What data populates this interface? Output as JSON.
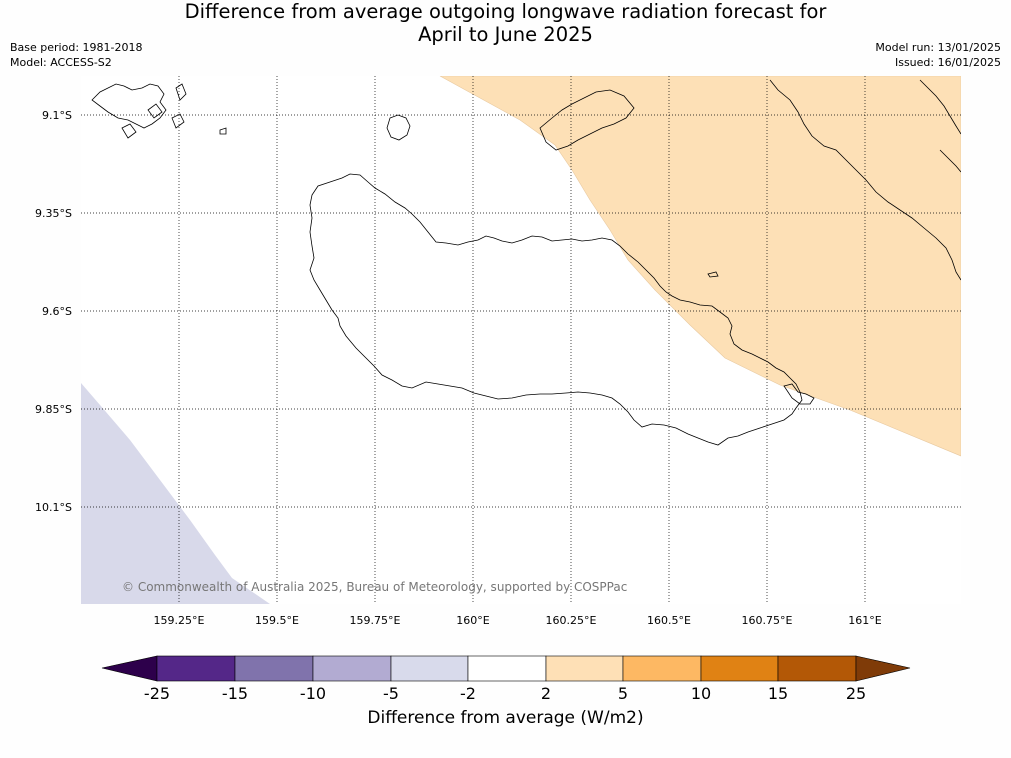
{
  "title": {
    "line1": "Difference from average outgoing longwave radiation forecast for",
    "line2": "April to June 2025"
  },
  "meta": {
    "base_period": "Base period: 1981-2018",
    "model": "Model: ACCESS-S2",
    "model_run": "Model run: 13/01/2025",
    "issued": "Issued: 16/01/2025"
  },
  "map": {
    "lat_labels": [
      "9.1°S",
      "9.35°S",
      "9.6°S",
      "9.85°S",
      "10.1°S"
    ],
    "lon_labels": [
      "159.25°E",
      "159.5°E",
      "159.75°E",
      "160°E",
      "160.25°E",
      "160.5°E",
      "160.75°E",
      "161°E"
    ],
    "copyright": "© Commonwealth of Australia 2025, Bureau of Meteorology, supported by COSPPac",
    "fill_colors": {
      "positive_2_5": "#fde0b6",
      "negative_5_2": "#d8d9ea"
    }
  },
  "colorbar": {
    "title": "Difference from average (W/m2)",
    "ticks": [
      "-25",
      "-15",
      "-10",
      "-5",
      "-2",
      "2",
      "5",
      "10",
      "15",
      "25"
    ],
    "colors": [
      "#2d004b",
      "#542788",
      "#8073ac",
      "#b2abd2",
      "#d8daeb",
      "#ffffff",
      "#fee0b6",
      "#fdb863",
      "#e08214",
      "#b35806",
      "#7f3b08"
    ]
  }
}
